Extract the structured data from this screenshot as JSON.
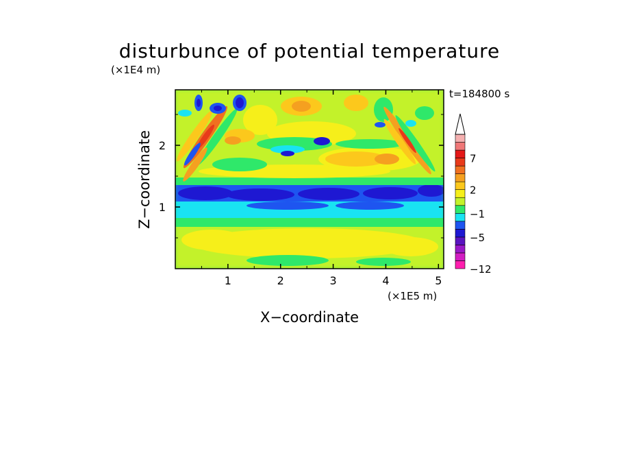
{
  "chart_data": {
    "type": "heatmap",
    "title": "disturbunce of potential temperature",
    "time_label": "t=184800 s",
    "xlabel": "X−coordinate",
    "ylabel": "Z−coordinate",
    "x_unit": "(×1E5 m)",
    "y_unit": "(×1E4 m)",
    "xlim": [
      0,
      5.1
    ],
    "ylim": [
      0,
      2.9
    ],
    "x_ticks": [
      "1",
      "2",
      "3",
      "4",
      "5"
    ],
    "x_tick_values": [
      1,
      2,
      3,
      4,
      5
    ],
    "y_ticks": [
      "1",
      "2"
    ],
    "y_tick_values": [
      1,
      2
    ],
    "colorbar": {
      "colors": [
        "#ff1fae",
        "#d21ec2",
        "#9a18c8",
        "#5a14c0",
        "#1e18d2",
        "#1e55f0",
        "#19e3f2",
        "#2fe86a",
        "#c3f22a",
        "#f6ef1a",
        "#fcc81c",
        "#f5a020",
        "#f07020",
        "#e83a1a",
        "#e41818",
        "#f07878",
        "#f5b0b0",
        "#ffffff"
      ],
      "tick_labels": [
        "−12",
        "−5",
        "−1",
        "2",
        "7"
      ],
      "tick_values": [
        -12,
        -5,
        -1,
        2,
        7
      ]
    },
    "bands": [
      {
        "z_from": 0.0,
        "z_to": 0.3,
        "level": "green-yellow"
      },
      {
        "z_from": 0.3,
        "z_to": 0.7,
        "level": "yellow"
      },
      {
        "z_from": 0.7,
        "z_to": 0.85,
        "level": "green"
      },
      {
        "z_from": 0.85,
        "z_to": 1.05,
        "level": "cyan"
      },
      {
        "z_from": 1.05,
        "z_to": 1.35,
        "level": "blue"
      },
      {
        "z_from": 1.35,
        "z_to": 1.5,
        "level": "green"
      },
      {
        "z_from": 1.5,
        "z_to": 2.9,
        "level": "yellow-green"
      }
    ]
  }
}
